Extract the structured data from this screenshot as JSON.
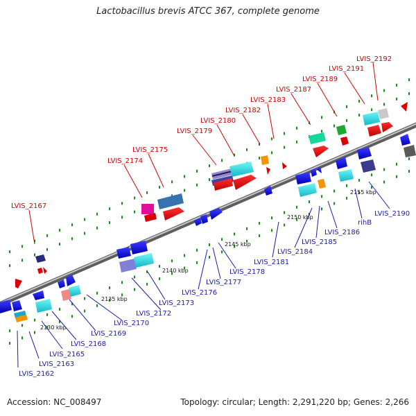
{
  "title": "Lactobacillus brevis ATCC 367, complete genome",
  "footer": {
    "accession": "Accession: NC_008497",
    "topology": "Topology: circular; Length: 2,291,220 bp; Genes: 2,266"
  },
  "colors": {
    "top_label": "#d40000",
    "bottom_label": "#1a1ab4",
    "backbone": "#8a8a8a",
    "tick": "#1a8c1a"
  },
  "kbp_labels": [
    "2130 kbp",
    "2135 kbp",
    "2140 kbp",
    "2145 kbp",
    "2150 kbp",
    "2155 kbp"
  ],
  "top_gene_labels": [
    "LVIS_2167",
    "LVIS_2174",
    "LVIS_2175",
    "LVIS_2179",
    "LVIS_2180",
    "LVIS_2182",
    "LVIS_2183",
    "LVIS_2187",
    "LVIS_2189",
    "LVIS_2191",
    "LVIS_2192"
  ],
  "bottom_gene_labels": [
    "LVIS_2162",
    "LVIS_2163",
    "LVIS_2165",
    "LVIS_2168",
    "LVIS_2169",
    "LVIS_2170",
    "LVIS_2172",
    "LVIS_2173",
    "LVIS_2176",
    "LVIS_2177",
    "LVIS_2178",
    "LVIS_2181",
    "LVIS_2184",
    "LVIS_2185",
    "LVIS_2186",
    "rihB",
    "LVIS_2190"
  ]
}
